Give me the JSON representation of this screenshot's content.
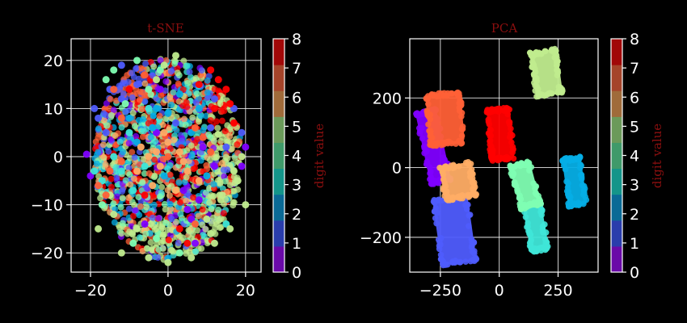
{
  "chart_data": [
    {
      "type": "scatter",
      "title": "t-SNE",
      "xlim": [
        -25,
        24
      ],
      "ylim": [
        -24,
        24.5
      ],
      "x_ticks": [
        -20,
        0,
        20
      ],
      "y_ticks": [
        -20,
        -10,
        0,
        10,
        20
      ],
      "x_tick_labels": [
        "−20",
        "0",
        "20"
      ],
      "y_tick_labels": [
        "−20",
        "−10",
        "0",
        "10",
        "20"
      ],
      "grid": true,
      "colorbar": {
        "label": "digit value",
        "ticks": [
          0,
          1,
          2,
          3,
          4,
          5,
          6,
          7,
          8
        ],
        "tick_labels": [
          "0",
          "1",
          "2",
          "3",
          "4",
          "5",
          "6",
          "7",
          "8"
        ],
        "range": [
          0,
          8
        ]
      },
      "series": [
        {
          "digit": 0,
          "color": "#7f00ff",
          "points": [
            [
              -21,
              0.5
            ],
            [
              -20,
              -4
            ],
            [
              5,
              -11
            ],
            [
              6,
              -13
            ],
            [
              8,
              -9
            ],
            [
              12,
              -2
            ],
            [
              19,
              -2
            ],
            [
              20,
              2
            ],
            [
              -3,
              5
            ],
            [
              -6,
              -14
            ],
            [
              4,
              -7
            ],
            [
              9,
              2
            ],
            [
              -2,
              14
            ],
            [
              7,
              -18
            ]
          ]
        },
        {
          "digit": 1,
          "color": "#4f5cfd",
          "points": [
            [
              -18,
              8
            ],
            [
              -15,
              14
            ],
            [
              -12,
              12
            ],
            [
              -16,
              5
            ],
            [
              12,
              12
            ],
            [
              17,
              10
            ],
            [
              19,
              5
            ],
            [
              15,
              2
            ],
            [
              -8,
              15
            ],
            [
              2,
              7
            ],
            [
              -19,
              10
            ],
            [
              11,
              6
            ],
            [
              -12,
              19
            ]
          ]
        },
        {
          "digit": 2,
          "color": "#06aee5",
          "points": [
            [
              -3,
              10
            ],
            [
              6,
              5
            ],
            [
              -8,
              3
            ],
            [
              0,
              9
            ],
            [
              10,
              -4
            ],
            [
              3,
              13
            ],
            [
              -4,
              6
            ],
            [
              8,
              10
            ],
            [
              -1,
              -4
            ],
            [
              -10,
              8
            ]
          ]
        },
        {
          "digit": 3,
          "color": "#3fe6d8",
          "points": [
            [
              -12,
              -3
            ],
            [
              -14,
              0
            ],
            [
              -17,
              -5
            ],
            [
              -10,
              5
            ],
            [
              -9,
              -7
            ],
            [
              -5,
              10
            ],
            [
              15,
              -14
            ],
            [
              -19,
              -3
            ],
            [
              -6,
              -2
            ]
          ]
        },
        {
          "digit": 4,
          "color": "#7ffeb2",
          "points": [
            [
              -8,
              20
            ],
            [
              -14,
              18
            ],
            [
              -11,
              11
            ],
            [
              -5,
              14
            ],
            [
              -2,
              18
            ],
            [
              -17,
              -10
            ],
            [
              -9,
              -18
            ],
            [
              -3,
              -17
            ],
            [
              -16,
              16
            ],
            [
              3,
              -20
            ]
          ]
        },
        {
          "digit": 5,
          "color": "#c0ec8e",
          "points": [
            [
              -1,
              19
            ],
            [
              2,
              21
            ],
            [
              -3,
              16
            ],
            [
              18,
              -5
            ],
            [
              20,
              -10
            ],
            [
              16,
              -15
            ],
            [
              12,
              -18
            ],
            [
              19,
              0
            ],
            [
              14,
              -8
            ],
            [
              10,
              -13
            ],
            [
              -14,
              -12
            ],
            [
              -18,
              -15
            ],
            [
              -12,
              -20
            ],
            [
              -8,
              -15
            ],
            [
              -5,
              -21
            ],
            [
              0,
              -22
            ],
            [
              -15,
              -8
            ],
            [
              6,
              -21
            ],
            [
              11,
              -16
            ],
            [
              17,
              -3
            ]
          ]
        },
        {
          "digit": 6,
          "color": "#ffad65",
          "points": [
            [
              -5,
              0
            ],
            [
              0,
              3
            ],
            [
              3,
              1
            ],
            [
              -2,
              -2
            ],
            [
              5,
              -3
            ],
            [
              -7,
              2
            ],
            [
              -1,
              5
            ],
            [
              8,
              -5
            ],
            [
              -4,
              -6
            ],
            [
              2,
              -7
            ],
            [
              4,
              -1
            ],
            [
              -8,
              -3
            ],
            [
              -3,
              1
            ]
          ]
        },
        {
          "digit": 7,
          "color": "#ff6036",
          "points": [
            [
              -14,
              14
            ],
            [
              -12,
              8
            ],
            [
              -15,
              -3
            ],
            [
              -16,
              -8
            ],
            [
              9,
              4
            ],
            [
              7,
              6
            ],
            [
              -6,
              17
            ],
            [
              -18,
              -6
            ],
            [
              -12,
              -1
            ],
            [
              7,
              -14
            ],
            [
              0,
              0
            ],
            [
              11,
              1
            ]
          ]
        },
        {
          "digit": 8,
          "color": "#ff0000",
          "points": [
            [
              13,
              16
            ],
            [
              15,
              14
            ],
            [
              16,
              11
            ],
            [
              17,
              7
            ],
            [
              11,
              18
            ],
            [
              -6,
              -8
            ],
            [
              -10,
              14
            ],
            [
              3,
              -15
            ],
            [
              12,
              10
            ],
            [
              5,
              -18
            ],
            [
              8,
              15
            ]
          ]
        }
      ]
    },
    {
      "type": "scatter",
      "title": "PCA",
      "xlim": [
        -380,
        420
      ],
      "ylim": [
        -300,
        370
      ],
      "x_ticks": [
        -250,
        0,
        250
      ],
      "y_ticks": [
        -200,
        0,
        200
      ],
      "x_tick_labels": [
        "−250",
        "0",
        "250"
      ],
      "y_tick_labels": [
        "−200",
        "0",
        "200"
      ],
      "grid": true,
      "colorbar": {
        "label": "digit value",
        "ticks": [
          0,
          1,
          2,
          3,
          4,
          5,
          6,
          7,
          8
        ],
        "tick_labels": [
          "0",
          "1",
          "2",
          "3",
          "4",
          "5",
          "6",
          "7",
          "8"
        ],
        "range": [
          0,
          8
        ]
      },
      "clusters": [
        {
          "digit": 0,
          "color": "#7f00ff",
          "center": [
            -280,
            60
          ],
          "size": [
            90,
            210
          ],
          "angle": -12
        },
        {
          "digit": 1,
          "color": "#4f5cfd",
          "center": [
            -190,
            -180
          ],
          "size": [
            150,
            190
          ],
          "angle": -8
        },
        {
          "digit": 2,
          "color": "#06aee5",
          "center": [
            320,
            -40
          ],
          "size": [
            80,
            140
          ],
          "angle": -8
        },
        {
          "digit": 3,
          "color": "#3fe6d8",
          "center": [
            155,
            -170
          ],
          "size": [
            80,
            140
          ],
          "angle": -10
        },
        {
          "digit": 4,
          "color": "#7ffeb2",
          "center": [
            110,
            -50
          ],
          "size": [
            90,
            130
          ],
          "angle": -15
        },
        {
          "digit": 5,
          "color": "#c0ec8e",
          "center": [
            200,
            272
          ],
          "size": [
            115,
            130
          ],
          "angle": -8
        },
        {
          "digit": 6,
          "color": "#ffad65",
          "center": [
            -175,
            -40
          ],
          "size": [
            135,
            100
          ],
          "angle": -10
        },
        {
          "digit": 7,
          "color": "#ff6036",
          "center": [
            -230,
            140
          ],
          "size": [
            150,
            150
          ],
          "angle": -5
        },
        {
          "digit": 8,
          "color": "#ff0000",
          "center": [
            5,
            95
          ],
          "size": [
            100,
            150
          ],
          "angle": -5
        }
      ]
    }
  ]
}
